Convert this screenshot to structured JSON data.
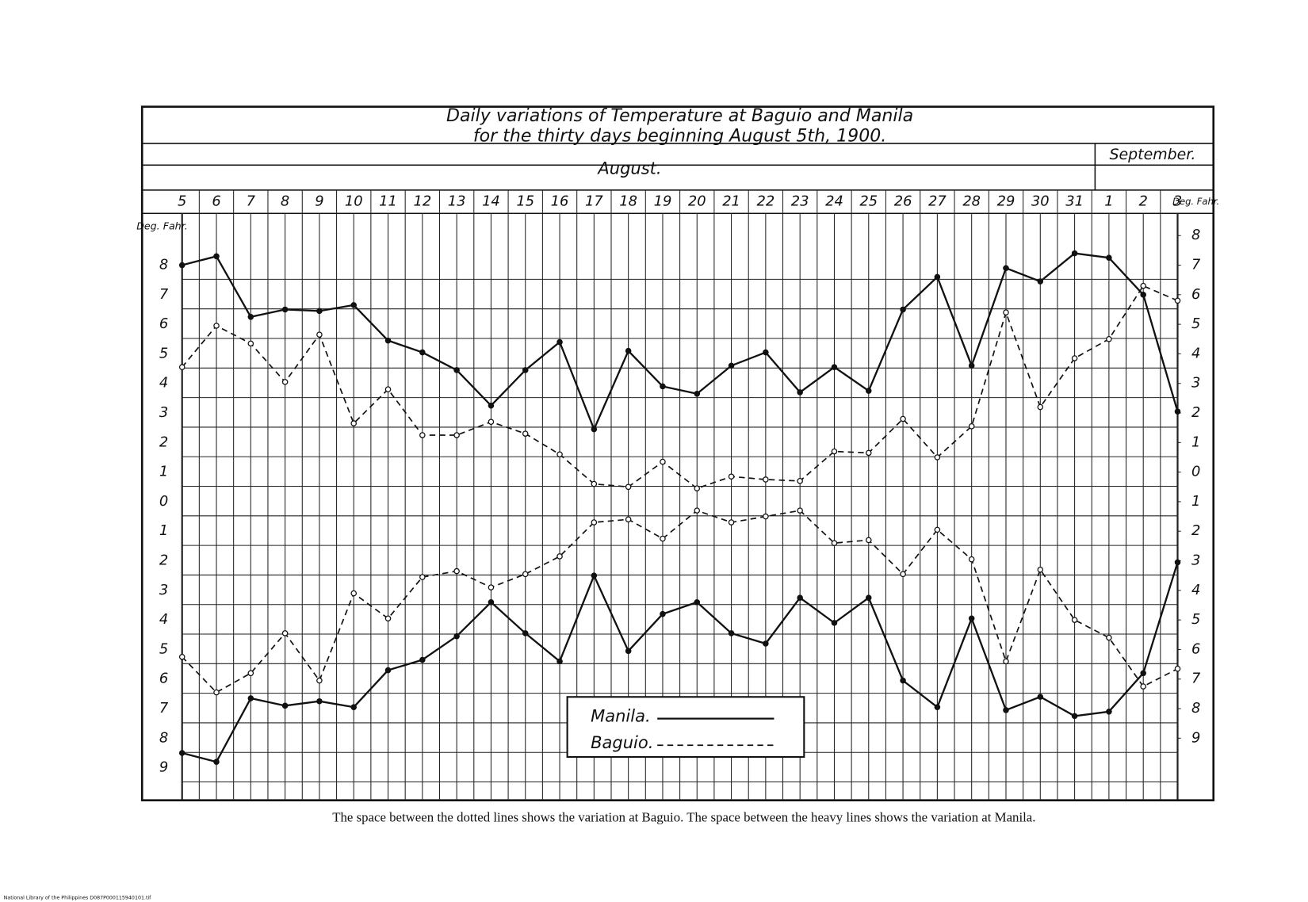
{
  "chart_data": {
    "type": "line",
    "title": [
      "Daily variations of Temperature at Baguio and Manila",
      "for the thirty days beginning August 5th, 1900."
    ],
    "months": [
      "August.",
      "September."
    ],
    "categories": [
      "5",
      "6",
      "7",
      "8",
      "9",
      "10",
      "11",
      "12",
      "13",
      "14",
      "15",
      "16",
      "17",
      "18",
      "19",
      "20",
      "21",
      "22",
      "23",
      "24",
      "25",
      "26",
      "27",
      "28",
      "29",
      "30",
      "31",
      "1",
      "2",
      "3"
    ],
    "ylabel": "Deg. Fahr.",
    "y2label": "Deg. Fahr.",
    "ylim": [
      -10.1,
      9.75
    ],
    "yticks": [
      8,
      7,
      6,
      5,
      4,
      3,
      2,
      1,
      0,
      {
        "value": -1,
        "label": "1"
      },
      {
        "value": -2,
        "label": "2"
      },
      {
        "value": -3,
        "label": "3"
      },
      {
        "value": -4,
        "label": "4"
      },
      {
        "value": -5,
        "label": "5"
      },
      {
        "value": -6,
        "label": "6"
      },
      {
        "value": -7,
        "label": "7"
      },
      {
        "value": -8,
        "label": "8"
      },
      {
        "value": -9,
        "label": "9"
      }
    ],
    "y2lim": [
      -11.1,
      8.75
    ],
    "y2ticks": [
      8,
      7,
      6,
      5,
      4,
      3,
      2,
      1,
      0,
      {
        "value": -1,
        "label": "1"
      },
      {
        "value": -2,
        "label": "2"
      },
      {
        "value": -3,
        "label": "3"
      },
      {
        "value": -4,
        "label": "4"
      },
      {
        "value": -5,
        "label": "5"
      },
      {
        "value": -6,
        "label": "6"
      },
      {
        "value": -7,
        "label": "7"
      },
      {
        "value": -8,
        "label": "8"
      },
      {
        "value": -9,
        "label": "9"
      }
    ],
    "grid": true,
    "legend": "bottom-center",
    "series": [
      {
        "name": "Manila.",
        "color": "#111111",
        "dash": "solid",
        "upper": [
          8.0,
          8.3,
          6.25,
          6.5,
          6.45,
          6.65,
          5.45,
          5.05,
          4.45,
          3.25,
          4.45,
          5.4,
          2.45,
          5.1,
          3.9,
          3.65,
          4.6,
          5.05,
          3.7,
          4.55,
          3.75,
          6.5,
          7.6,
          4.6,
          7.9,
          7.45,
          8.4,
          8.25,
          7.0,
          3.05
        ],
        "lower": [
          -8.5,
          -8.8,
          -6.65,
          -6.9,
          -6.75,
          -6.95,
          -5.7,
          -5.35,
          -4.55,
          -3.4,
          -4.45,
          -5.4,
          -2.5,
          -5.05,
          -3.8,
          -3.4,
          -4.45,
          -4.8,
          -3.25,
          -4.1,
          -3.25,
          -6.05,
          -6.95,
          -3.95,
          -7.05,
          -6.6,
          -7.25,
          -7.1,
          -5.8,
          -2.05
        ]
      },
      {
        "name": "Baguio.",
        "color": "#111111",
        "dash": "dashed",
        "upper": [
          4.55,
          5.95,
          5.35,
          4.05,
          5.65,
          2.65,
          3.8,
          2.25,
          2.25,
          2.7,
          2.3,
          1.6,
          0.6,
          0.5,
          1.35,
          0.45,
          0.85,
          0.75,
          0.7,
          1.7,
          1.65,
          2.8,
          1.5,
          2.55,
          6.4,
          3.2,
          4.85,
          5.5,
          7.3,
          6.8
        ],
        "lower": [
          -5.25,
          -6.45,
          -5.8,
          -4.45,
          -6.05,
          -3.1,
          -3.95,
          -2.55,
          -2.35,
          -2.9,
          -2.45,
          -1.85,
          -0.7,
          -0.6,
          -1.25,
          -0.3,
          -0.7,
          -0.5,
          -0.3,
          -1.4,
          -1.3,
          -2.45,
          -0.95,
          -1.95,
          -5.4,
          -2.3,
          -4.0,
          -4.6,
          -6.25,
          -5.65
        ]
      }
    ],
    "caption": "The space between the dotted lines shows the variation at Baguio.   The space between the heavy lines shows the variation at Manila.",
    "footer": "National Library of the Philippines    D087P000115940101.tif"
  }
}
